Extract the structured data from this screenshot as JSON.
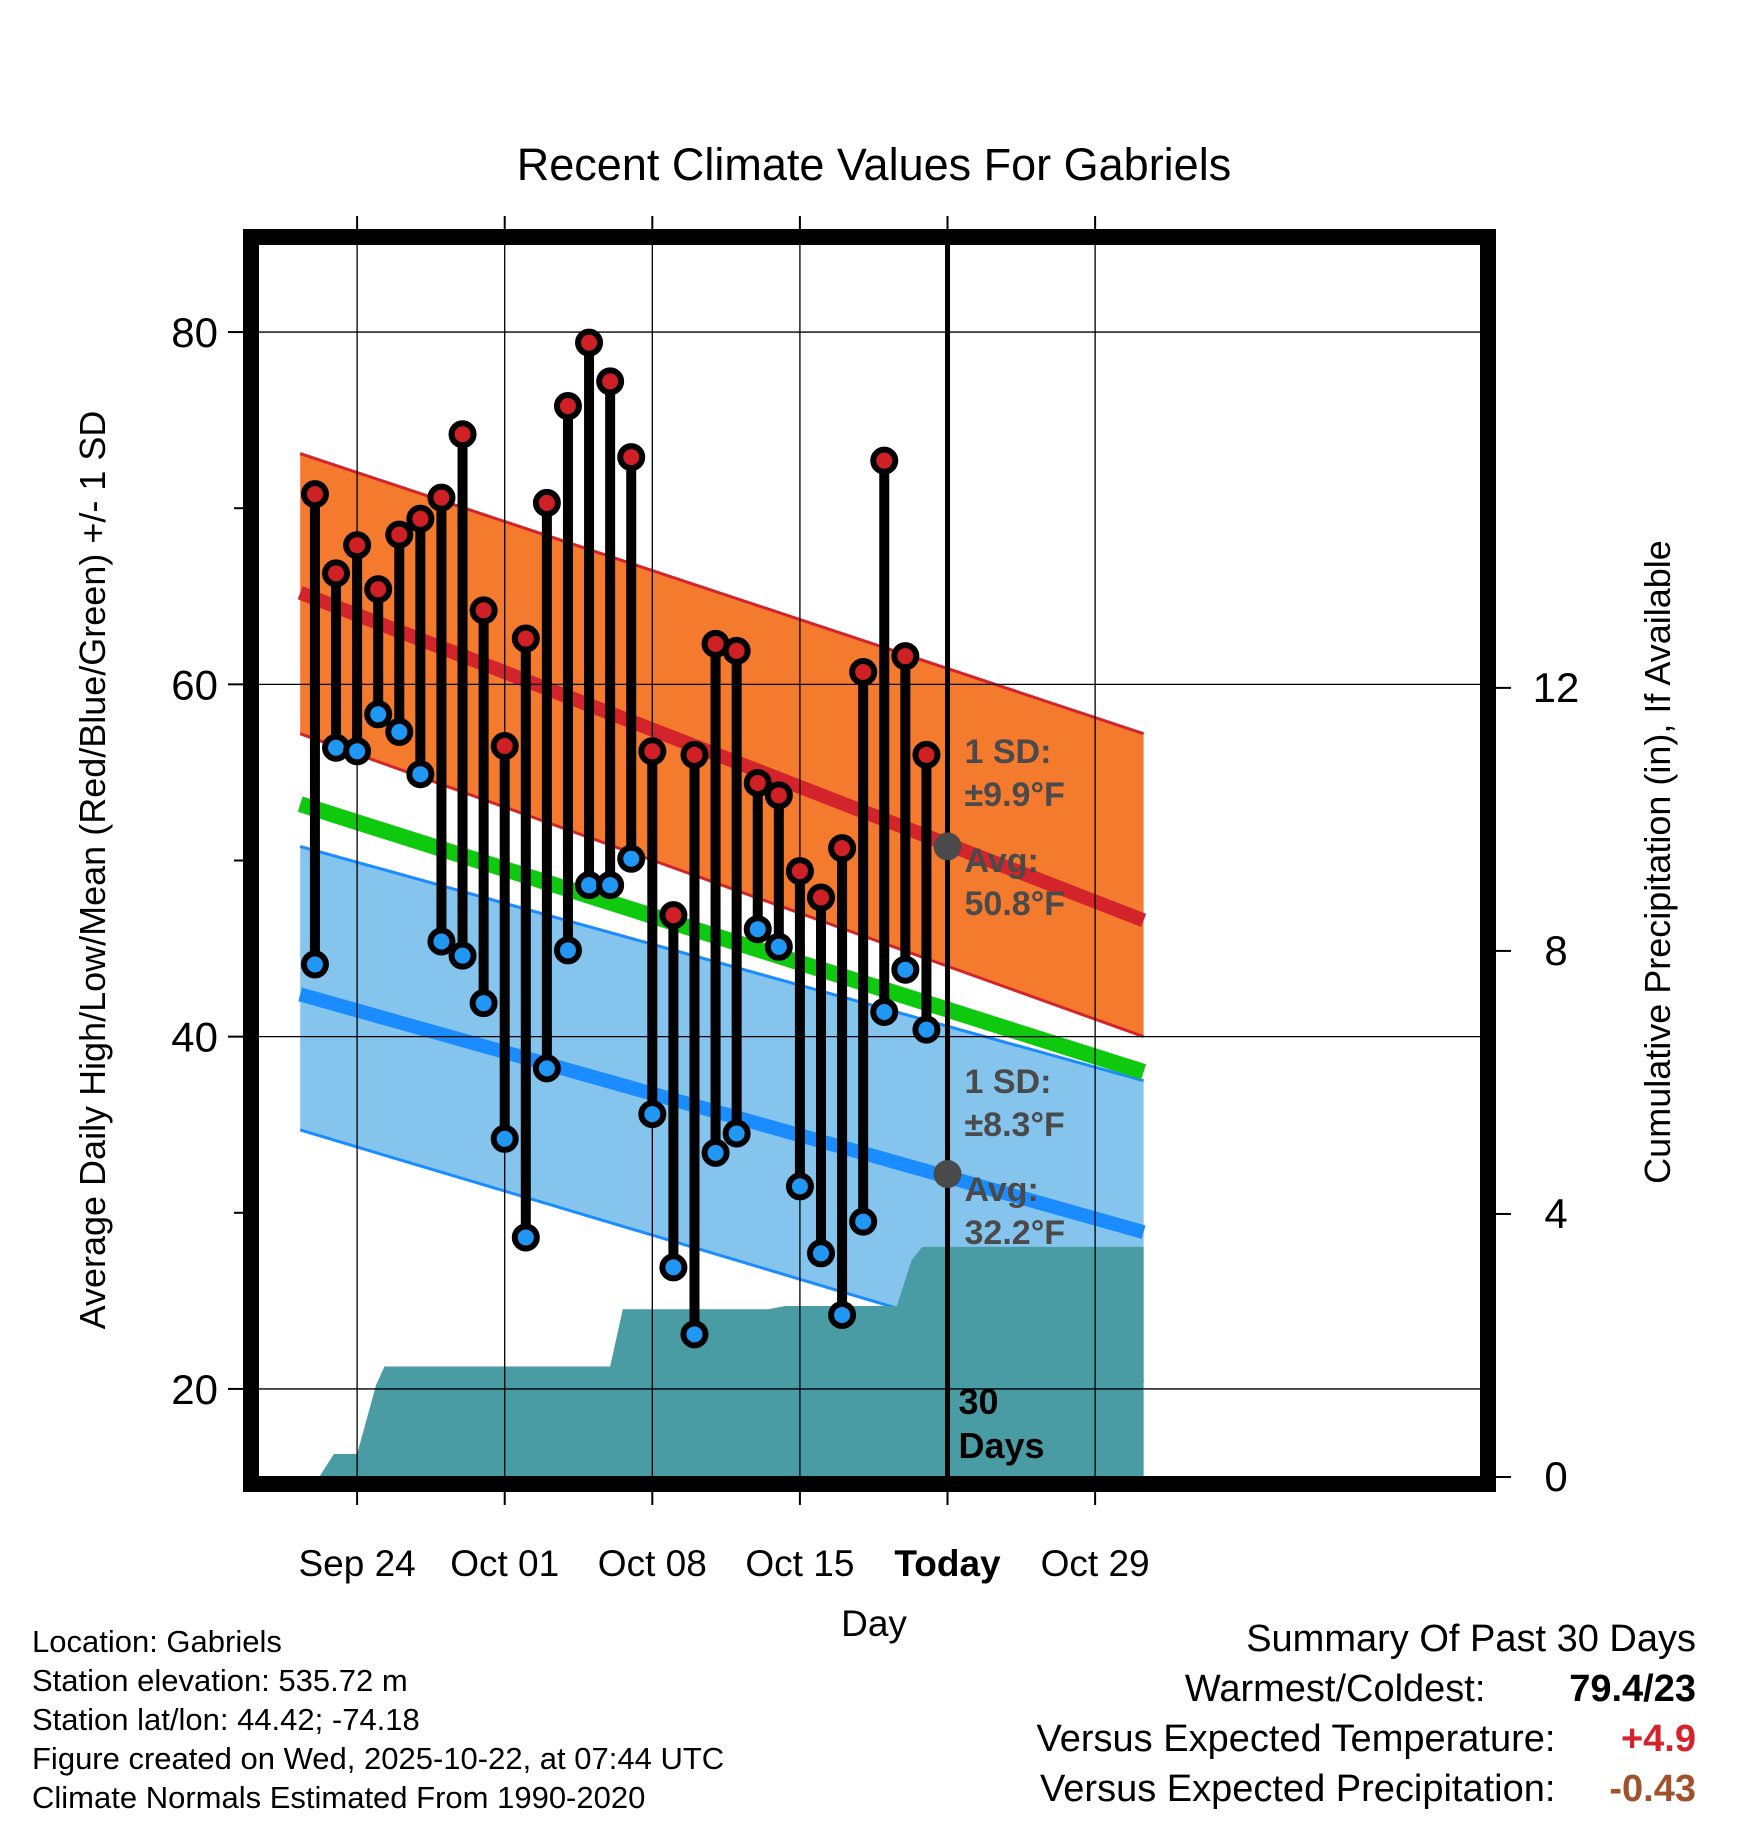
{
  "chart_data": {
    "type": "climate-range",
    "title": "Recent Climate Values For Gabriels",
    "xlabel": "Day",
    "ylabel": "Average Daily High/Low/Mean (Red/Blue/Green) +/- 1 SD",
    "y2label": "Cumulative Precipitation (in), If Available",
    "xlim": [
      -4.7,
      53.3
    ],
    "ylim": [
      15,
      85
    ],
    "y2lim": [
      0,
      18.75
    ],
    "x_ticks": [
      {
        "x": 0,
        "label": "Sep 24",
        "bold": false
      },
      {
        "x": 7,
        "label": "Oct 01",
        "bold": false
      },
      {
        "x": 14,
        "label": "Oct 08",
        "bold": false
      },
      {
        "x": 21,
        "label": "Oct 15",
        "bold": false
      },
      {
        "x": 28,
        "label": "Today",
        "bold": true
      },
      {
        "x": 35,
        "label": "Oct 29",
        "bold": false
      }
    ],
    "y_ticks": [
      20,
      40,
      60,
      80
    ],
    "y2_ticks": [
      0,
      4,
      8,
      12
    ],
    "today_x": 28,
    "today_label": "30 Days",
    "normal_high": {
      "x": [
        -2.7,
        37.3
      ],
      "mean": [
        65.2,
        46.6
      ],
      "upper": [
        73.1,
        57.2
      ],
      "lower": [
        57.2,
        40.0
      ]
    },
    "normal_low": {
      "x": [
        -2.7,
        37.3
      ],
      "mean": [
        42.4,
        28.9
      ],
      "upper": [
        50.8,
        37.5
      ],
      "lower": [
        34.7,
        20.4
      ]
    },
    "normal_mean": {
      "x": [
        -2.7,
        37.3
      ],
      "values": [
        53.2,
        38.0
      ]
    },
    "annotations": {
      "high_sd": "1 SD:",
      "high_sd_value": "±9.9°F",
      "high_avg": "Avg:",
      "high_avg_value": "50.8°F",
      "low_sd": "1 SD:",
      "low_sd_value": "±8.3°F",
      "low_avg": "Avg:",
      "low_avg_value": "32.2°F",
      "high_today": 50.8,
      "low_today": 32.2
    },
    "daily": {
      "x": [
        -2,
        -1,
        0,
        1,
        2,
        3,
        4,
        5,
        6,
        7,
        8,
        9,
        10,
        11,
        12,
        13,
        14,
        15,
        16,
        17,
        18,
        19,
        20,
        21,
        22,
        23,
        24,
        25,
        26,
        27
      ],
      "high": [
        70.8,
        66.3,
        67.9,
        65.4,
        68.5,
        69.4,
        70.6,
        74.2,
        64.2,
        56.5,
        62.6,
        70.3,
        75.8,
        79.4,
        77.2,
        72.9,
        56.2,
        46.9,
        56.0,
        62.3,
        61.9,
        54.4,
        53.7,
        49.4,
        47.9,
        50.7,
        60.7,
        72.7,
        61.6,
        56.0
      ],
      "low": [
        44.1,
        56.4,
        56.2,
        58.3,
        57.3,
        54.9,
        45.4,
        44.6,
        41.9,
        34.2,
        28.6,
        38.2,
        44.9,
        48.6,
        48.6,
        50.1,
        35.6,
        26.9,
        23.1,
        33.4,
        34.5,
        46.1,
        45.1,
        31.5,
        27.7,
        24.2,
        29.5,
        41.4,
        43.8,
        40.4
      ]
    },
    "precip": {
      "x": [
        -1.8,
        -1.1,
        0,
        0.9,
        1.3,
        2.0,
        7.0,
        12.0,
        12.6,
        13.3,
        19.5,
        20.3,
        25.6,
        26.3,
        26.8,
        27.2,
        37.3
      ],
      "y": [
        0,
        0.35,
        0.35,
        1.4,
        1.68,
        1.68,
        1.68,
        1.68,
        2.55,
        2.55,
        2.55,
        2.6,
        2.6,
        3.3,
        3.5,
        3.5,
        3.5
      ]
    },
    "colors": {
      "high_band": "#f47a2e",
      "high_line": "#d2242a",
      "low_band": "#85c4ec",
      "low_line": "#1a8cff",
      "mean_line": "#0ec90e",
      "precip": "#499ca4",
      "high_dot": "#cf2026",
      "low_dot": "#2197f5",
      "annotation": "#4a4a4a"
    }
  },
  "footer": {
    "location": "Location: Gabriels",
    "elevation": "Station elevation: 535.72 m",
    "latlon": "Station lat/lon: 44.42; -74.18",
    "created": "Figure created on Wed, 2025-10-22, at 07:44 UTC",
    "normals": "Climate Normals Estimated From 1990-2020"
  },
  "summary": {
    "title": "Summary Of Past 30 Days",
    "warmest_label": "Warmest/Coldest:",
    "warmest_value": "79.4/23",
    "temp_label": "Versus Expected Temperature:",
    "temp_value": "+4.9",
    "temp_color": "#d2242a",
    "precip_label": "Versus Expected Precipitation:",
    "precip_value": "-0.43",
    "precip_color": "#a0522d"
  }
}
